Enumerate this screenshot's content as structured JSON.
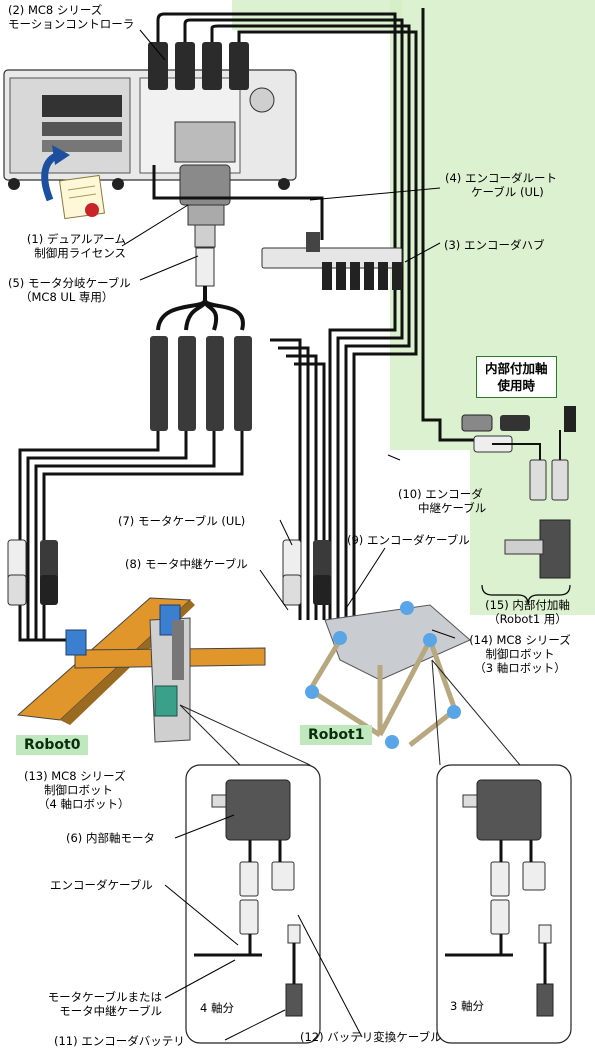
{
  "labels": {
    "mc8_controller": [
      "(2) MC8 シリーズ",
      "モーションコントローラ"
    ],
    "dual_arm_license": [
      "(1) デュアルアーム",
      "制御用ライセンス"
    ],
    "motor_branch_cable": [
      "(5) モータ分岐ケーブル",
      "（MC8 UL 専用）"
    ],
    "encoder_route_cable": [
      "(4) エンコーダルート",
      "ケーブル (UL)"
    ],
    "encoder_hub": "(3) エンコーダハブ",
    "internal_axis_usage": [
      "内部付加軸",
      "使用時"
    ],
    "encoder_relay_cable": [
      "(10) エンコーダ",
      "中継ケーブル"
    ],
    "motor_cable_ul": "(7) モータケーブル (UL)",
    "encoder_cable_9": "(9) エンコーダケーブル",
    "motor_relay_cable": "(8) モータ中継ケーブル",
    "internal_added_axis": [
      "(15) 内部付加軸",
      "（Robot1 用）"
    ],
    "mc8_robot_3axis": [
      "(14) MC8 シリーズ",
      "制御ロボット",
      "（3 軸ロボット）"
    ],
    "mc8_robot_4axis": [
      "(13) MC8 シリーズ",
      "制御ロボット",
      "（4 軸ロボット）"
    ],
    "internal_axis_motor": "(6) 内部軸モータ",
    "encoder_cable": "エンコーダケーブル",
    "motor_or_relay_cable": [
      "モータケーブルまたは",
      "モータ中継ケーブル"
    ],
    "four_axis": "4 軸分",
    "three_axis": "3 軸分",
    "encoder_battery": "(11) エンコーダバッテリ",
    "battery_conversion_cable": "(12) バッテリ変換ケーブル",
    "robot0": "Robot0",
    "robot1": "Robot1"
  },
  "colors": {
    "cable": "#111111",
    "highlight": "#d6efc7",
    "robot_tag": "#bfe8bf",
    "frame_green": "#2a7a2a",
    "license_arrow": "#1d4fa0",
    "rail_orange": "#e0962b",
    "robot_blue": "#3a7fd0",
    "motor_gray": "#5a5a5a"
  }
}
